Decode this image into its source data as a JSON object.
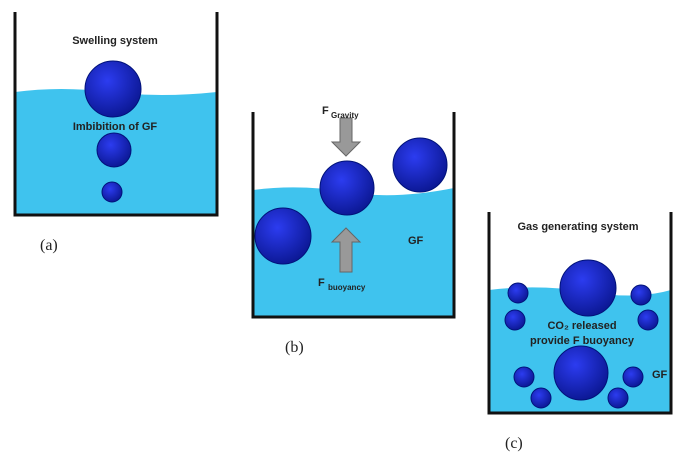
{
  "panels": [
    {
      "title": "Swelling system",
      "annotation": "Imbibition of GF",
      "label": "(a)"
    },
    {
      "force_top": "F",
      "force_top_sub": "Gravity",
      "fluid": "GF",
      "force_bottom": "F",
      "force_bottom_sub": "buoyancy",
      "label": "(b)"
    },
    {
      "title": "Gas generating system",
      "annotation_line1": "CO₂ released",
      "annotation_line2": "provide F buoyancy",
      "fluid": "GF",
      "label": "(c)"
    }
  ]
}
